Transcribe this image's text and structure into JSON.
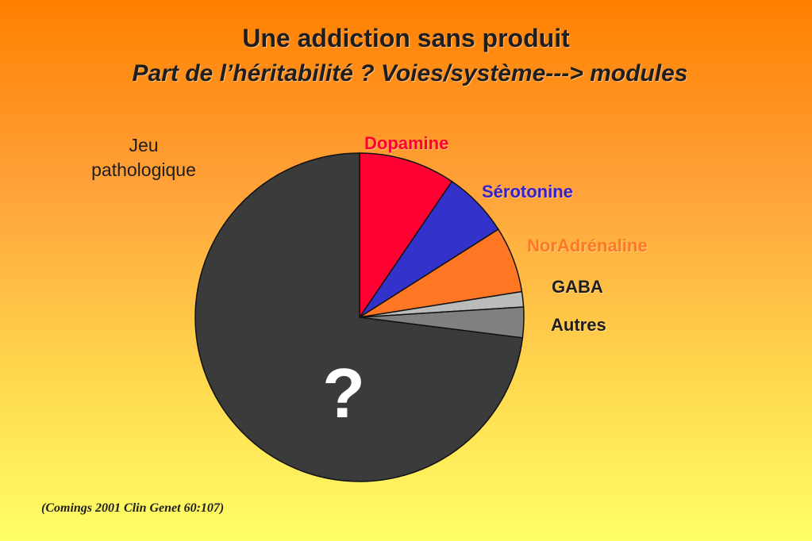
{
  "header": {
    "title": "Une addiction sans produit",
    "subtitle": "Part de l’héritabilité ? Voies/système---> modules"
  },
  "side_label": {
    "line1": "Jeu",
    "line2": "pathologique"
  },
  "citation": "(Comings 2001 Clin Genet 60:107)",
  "chart_data": {
    "type": "pie",
    "slices": [
      {
        "label": "Dopamine",
        "value": 9.5,
        "color": "#ff0033",
        "label_color": "#ff0033"
      },
      {
        "label": "Sérotonine",
        "value": 6.5,
        "color": "#3333cc",
        "label_color": "#3322cc"
      },
      {
        "label": "NorAdrénaline",
        "value": 6.5,
        "color": "#ff7722",
        "label_color": "#ff7722"
      },
      {
        "label": "GABA",
        "value": 1.5,
        "color": "#bbbbbb",
        "label_color": "#1e1e1e"
      },
      {
        "label": "Autres",
        "value": 3.0,
        "color": "#808080",
        "label_color": "#1e1e1e"
      },
      {
        "label": "?",
        "value": 73.0,
        "color": "#3b3b3b",
        "label_color": "#ffffff"
      }
    ],
    "start_angle_deg": 0,
    "direction": "clockwise"
  }
}
